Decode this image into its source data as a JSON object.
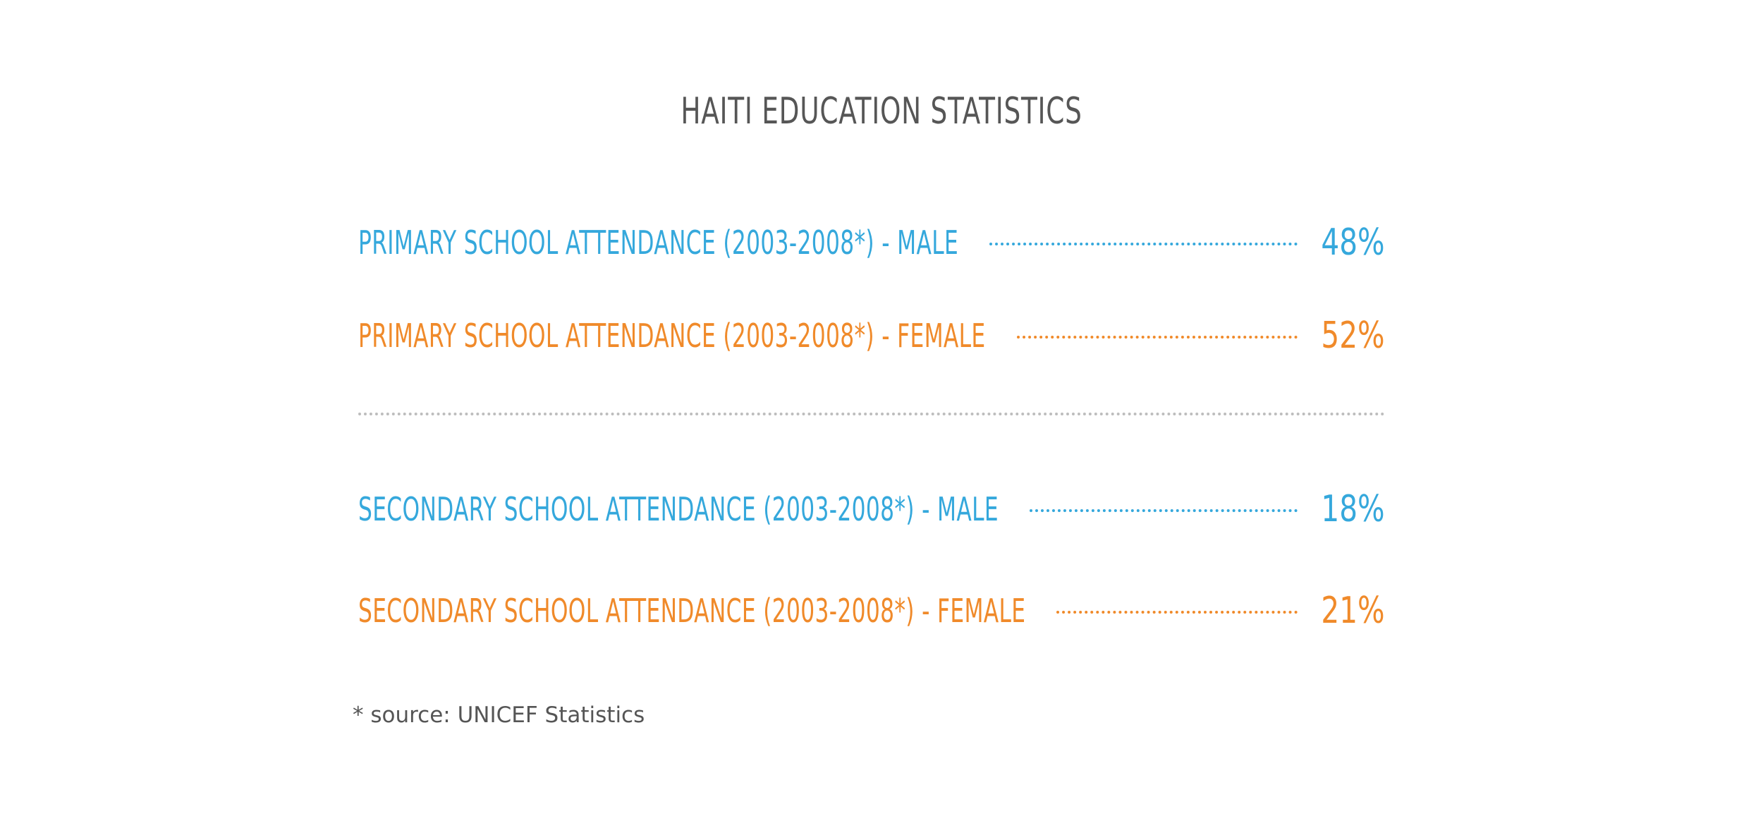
{
  "title": "HAITI EDUCATION STATISTICS",
  "colors": {
    "male": "#35a8dc",
    "female": "#f08a2a",
    "title": "#565656",
    "divider": "#bdbdbd",
    "footnote": "#555555"
  },
  "chart_data": {
    "type": "table",
    "title": "HAITI EDUCATION STATISTICS",
    "unit": "%",
    "categories": [
      "PRIMARY SCHOOL ATTENDANCE (2003-2008*) - MALE",
      "PRIMARY SCHOOL ATTENDANCE (2003-2008*) - FEMALE",
      "SECONDARY SCHOOL ATTENDANCE (2003-2008*) - MALE",
      "SECONDARY SCHOOL ATTENDANCE (2003-2008*) - FEMALE"
    ],
    "values": [
      48,
      52,
      18,
      21
    ],
    "rows": [
      {
        "label": "PRIMARY SCHOOL ATTENDANCE (2003-2008*) - MALE",
        "value": 48,
        "display": "48%",
        "group": "primary",
        "gender": "male"
      },
      {
        "label": "PRIMARY SCHOOL ATTENDANCE (2003-2008*) - FEMALE",
        "value": 52,
        "display": "52%",
        "group": "primary",
        "gender": "female"
      },
      {
        "label": "SECONDARY SCHOOL ATTENDANCE (2003-2008*) - MALE",
        "value": 18,
        "display": "18%",
        "group": "secondary",
        "gender": "male"
      },
      {
        "label": "SECONDARY SCHOOL ATTENDANCE (2003-2008*) - FEMALE",
        "value": 21,
        "display": "21%",
        "group": "secondary",
        "gender": "female"
      }
    ]
  },
  "footnote": "* source: UNICEF Statistics"
}
